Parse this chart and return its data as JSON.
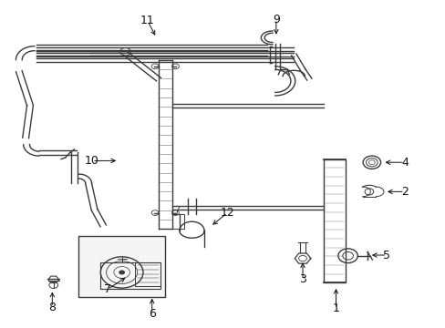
{
  "bg_color": "#ffffff",
  "line_color": "#3a3a3a",
  "fig_width": 4.89,
  "fig_height": 3.6,
  "dpi": 100,
  "label_fs": 9,
  "lw": 1.0,
  "labels": {
    "1": [
      0.755,
      0.055,
      0.755,
      0.125
    ],
    "2": [
      0.91,
      0.415,
      0.865,
      0.415
    ],
    "3": [
      0.68,
      0.145,
      0.68,
      0.205
    ],
    "4": [
      0.91,
      0.505,
      0.86,
      0.505
    ],
    "5": [
      0.87,
      0.22,
      0.83,
      0.22
    ],
    "6": [
      0.34,
      0.04,
      0.34,
      0.095
    ],
    "7": [
      0.24,
      0.115,
      0.285,
      0.155
    ],
    "8": [
      0.115,
      0.06,
      0.115,
      0.115
    ],
    "9": [
      0.62,
      0.945,
      0.62,
      0.89
    ],
    "10": [
      0.205,
      0.51,
      0.265,
      0.51
    ],
    "11": [
      0.33,
      0.94,
      0.35,
      0.888
    ],
    "12": [
      0.51,
      0.35,
      0.472,
      0.308
    ]
  }
}
